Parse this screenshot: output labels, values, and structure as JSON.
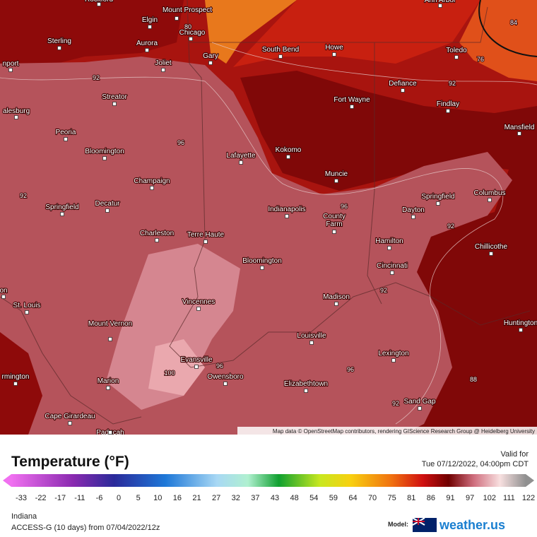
{
  "map": {
    "cities": [
      "Rockford",
      "Elgin",
      "Mount Prospect",
      "Chicago",
      "Sterling",
      "Aurora",
      "Joliet",
      "Gary",
      "South Bend",
      "Howe",
      "Ann Arbor",
      "Toledo",
      "nport",
      "Defiance",
      "Fort Wayne",
      "Findlay",
      "Streator",
      "alesburg",
      "Peoria",
      "Mansfield",
      "Bloomington",
      "Kokomo",
      "Lafayette",
      "Muncie",
      "Champaign",
      "Springfield",
      "Columbus",
      "Decatur",
      "Springfield",
      "Indianapolis",
      "Dayton",
      "County Farm",
      "Charleston",
      "Terre Haute",
      "Hamilton",
      "Chillicothe",
      "Bloomington",
      "Cincinnati",
      "on",
      "St. Louis",
      "Madison",
      "Vincennes",
      "Huntington",
      "Mount Vernon",
      "Louisville",
      "Lexington",
      "Evansville",
      "Owensboro",
      "rmington",
      "Marion",
      "Elizabethtown",
      "Sand Gap",
      "Cape Girardeau",
      "Paducah"
    ],
    "contour_labels": [
      "80",
      "84",
      "76",
      "92",
      "92",
      "96",
      "96",
      "92",
      "92",
      "92",
      "96",
      "100",
      "96",
      "92",
      "88"
    ],
    "attribution": "Map data © OpenStreetMap contributors, rendering GIScience Research Group @ Heidelberg University"
  },
  "legend": {
    "title": "Temperature (°F)",
    "valid_label": "Valid for",
    "valid_time": "Tue 07/12/2022, 04:00pm CDT",
    "ticks": [
      -33,
      -22,
      -17,
      -11,
      -6,
      0,
      5,
      10,
      16,
      21,
      27,
      32,
      37,
      43,
      48,
      54,
      59,
      64,
      70,
      75,
      81,
      86,
      91,
      97,
      102,
      111,
      122
    ],
    "region": "Indiana",
    "model_run": "ACCESS-G (10 days) from 07/04/2022/12z",
    "model_label": "Model:",
    "brand": "weather.us"
  }
}
